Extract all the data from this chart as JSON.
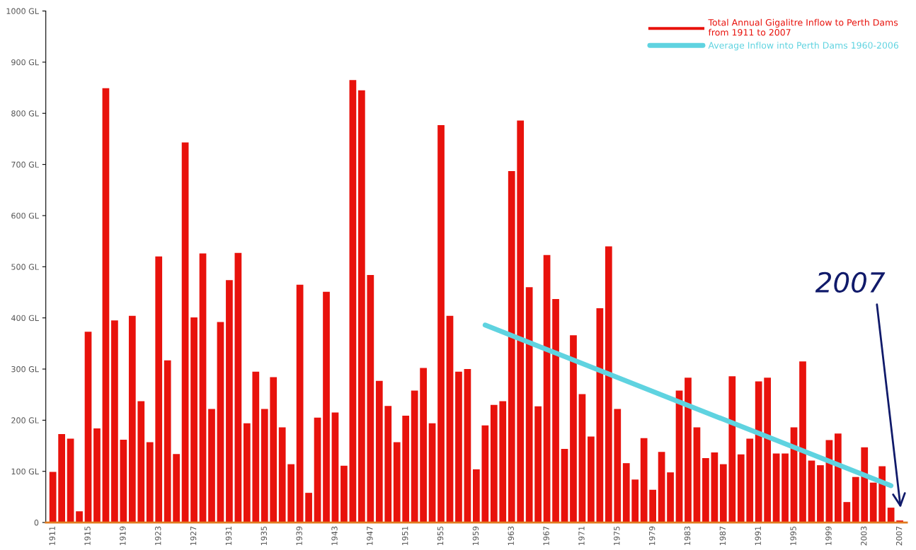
{
  "chart_data": {
    "type": "bar",
    "categories": [
      "1911",
      null,
      null,
      null,
      "1915",
      null,
      null,
      null,
      "1919",
      null,
      null,
      null,
      "1923",
      null,
      null,
      null,
      "1927",
      null,
      null,
      null,
      "1931",
      null,
      null,
      null,
      "1935",
      null,
      null,
      null,
      "1939",
      null,
      null,
      null,
      "1943",
      null,
      null,
      null,
      "1947",
      null,
      null,
      null,
      "1951",
      null,
      null,
      null,
      "1955",
      null,
      null,
      null,
      "1959",
      null,
      null,
      null,
      "1963",
      null,
      null,
      null,
      "1967",
      null,
      null,
      null,
      "1971",
      null,
      null,
      null,
      "1975",
      null,
      null,
      null,
      "1979",
      null,
      null,
      null,
      "1983",
      null,
      null,
      null,
      "1987",
      null,
      null,
      null,
      "1991",
      null,
      null,
      null,
      "1995",
      null,
      null,
      null,
      "1999",
      null,
      null,
      null,
      "2003",
      null,
      null,
      null,
      "2007"
    ],
    "series": [
      {
        "name": "Total Annual Gigalitre Inflow to Perth Dams\nfrom 1911 to 2007",
        "color": "#e8120c",
        "values": [
          99,
          173,
          164,
          22,
          373,
          184,
          849,
          395,
          162,
          404,
          237,
          157,
          520,
          317,
          134,
          743,
          401,
          526,
          222,
          392,
          474,
          527,
          194,
          295,
          222,
          284,
          186,
          114,
          465,
          58,
          205,
          451,
          215,
          111,
          865,
          845,
          484,
          277,
          228,
          157,
          209,
          258,
          302,
          194,
          777,
          404,
          295,
          300,
          104,
          190,
          230,
          237,
          687,
          786,
          460,
          227,
          523,
          437,
          144,
          366,
          251,
          168,
          419,
          540,
          222,
          116,
          84,
          165,
          64,
          138,
          98,
          258,
          283,
          186,
          126,
          137,
          114,
          286,
          133,
          164,
          276,
          283,
          135,
          135,
          186,
          315,
          121,
          112,
          161,
          174,
          40,
          89,
          147,
          78,
          110,
          29,
          4
        ]
      },
      {
        "name": "Average Inflow into Perth Dams 1960-2006",
        "type": "line",
        "color": "#5fd3e0",
        "values": [
          null,
          null,
          null,
          null,
          null,
          null,
          null,
          null,
          null,
          null,
          null,
          null,
          null,
          null,
          null,
          null,
          null,
          null,
          null,
          null,
          null,
          null,
          null,
          null,
          null,
          null,
          null,
          null,
          null,
          null,
          null,
          null,
          null,
          null,
          null,
          null,
          null,
          null,
          null,
          null,
          null,
          null,
          null,
          null,
          null,
          null,
          null,
          null,
          null,
          386,
          null,
          null,
          null,
          null,
          null,
          null,
          null,
          null,
          null,
          null,
          null,
          null,
          null,
          null,
          null,
          null,
          null,
          null,
          null,
          null,
          null,
          null,
          null,
          null,
          null,
          null,
          null,
          null,
          null,
          null,
          null,
          null,
          null,
          null,
          null,
          null,
          null,
          null,
          null,
          null,
          null,
          null,
          null,
          null,
          null,
          72,
          null
        ]
      }
    ],
    "ylim": [
      0,
      1000
    ],
    "yticks": [
      0,
      {
        "value": 100,
        "label": "100 GL"
      },
      {
        "value": 200,
        "label": "200 GL"
      },
      {
        "value": 300,
        "label": "300 GL"
      },
      {
        "value": 400,
        "label": "400 GL"
      },
      {
        "value": 500,
        "label": "500 GL"
      },
      {
        "value": 600,
        "label": "600 GL"
      },
      {
        "value": 700,
        "label": "700 GL"
      },
      {
        "value": 800,
        "label": "800 GL"
      },
      {
        "value": 900,
        "label": "900 GL"
      },
      {
        "value": 1000,
        "label": "1000 GL"
      }
    ],
    "legend": "top right",
    "grid": false,
    "annotations": [
      "2007"
    ]
  }
}
